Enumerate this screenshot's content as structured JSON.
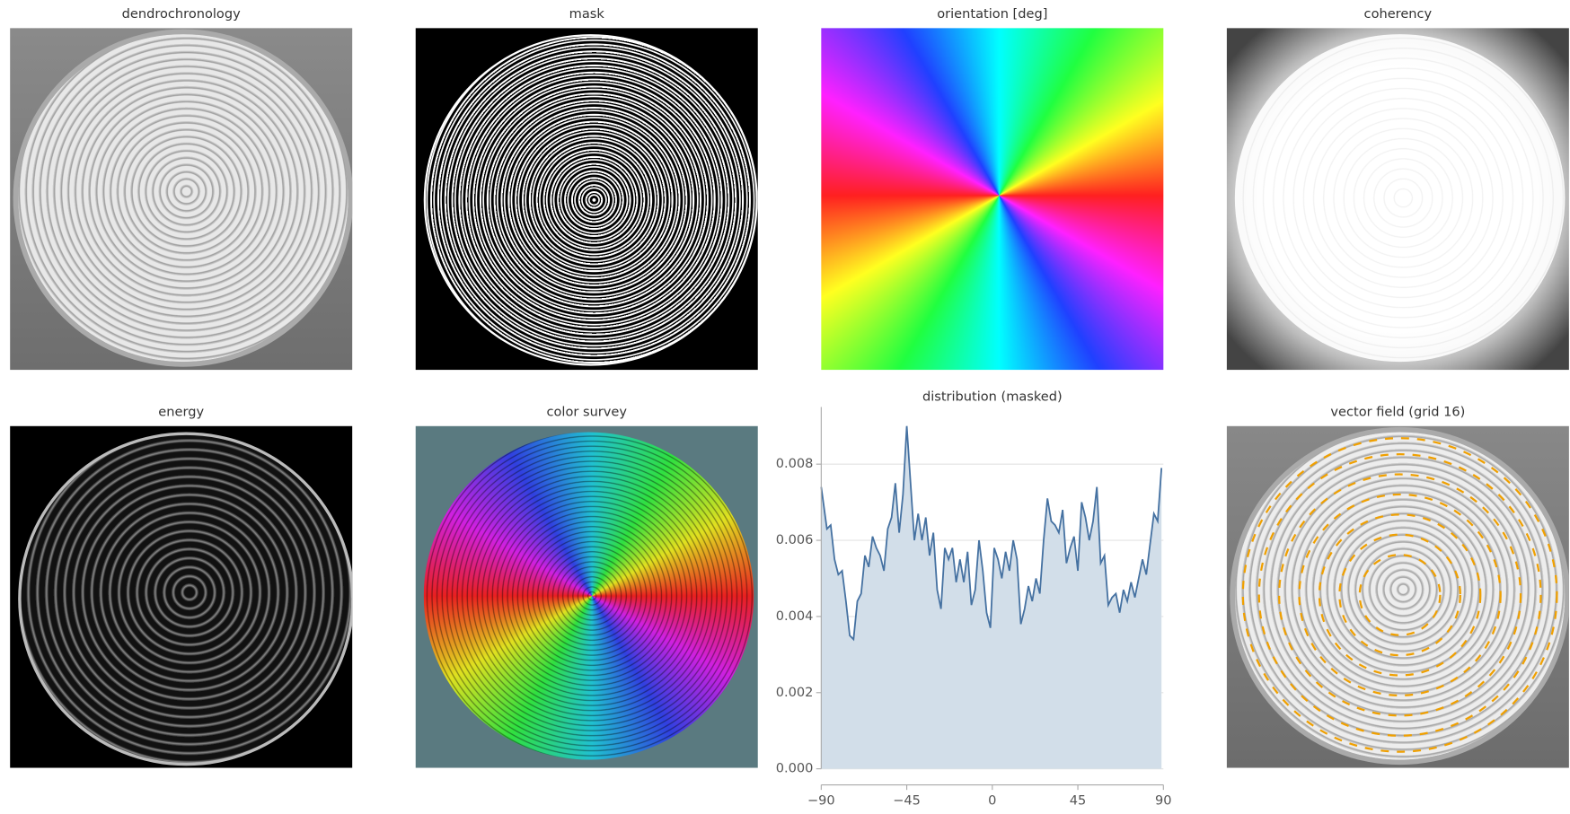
{
  "panels": [
    {
      "title": "dendrochronology"
    },
    {
      "title": "mask"
    },
    {
      "title": "orientation [deg]"
    },
    {
      "title": "coherency"
    },
    {
      "title": "energy"
    },
    {
      "title": "color survey"
    },
    {
      "title": "vector field (grid 16)"
    }
  ],
  "chart_data": {
    "type": "line",
    "title": "distribution (masked)",
    "x": [
      -90,
      -87,
      -85,
      -83,
      -81,
      -79,
      -77,
      -75,
      -73,
      -71,
      -69,
      -67,
      -65,
      -63,
      -61,
      -59,
      -57,
      -55,
      -53,
      -51,
      -49,
      -47,
      -45,
      -43,
      -41,
      -39,
      -37,
      -35,
      -33,
      -31,
      -29,
      -27,
      -25,
      -23,
      -21,
      -19,
      -17,
      -15,
      -13,
      -11,
      -9,
      -7,
      -5,
      -3,
      -1,
      1,
      3,
      5,
      7,
      9,
      11,
      13,
      15,
      17,
      19,
      21,
      23,
      25,
      27,
      29,
      31,
      33,
      35,
      37,
      39,
      41,
      43,
      45,
      47,
      49,
      51,
      53,
      55,
      57,
      59,
      61,
      63,
      65,
      67,
      69,
      71,
      73,
      75,
      77,
      79,
      81,
      83,
      85,
      87,
      89
    ],
    "values": [
      0.0074,
      0.0063,
      0.0064,
      0.0055,
      0.0051,
      0.0052,
      0.0044,
      0.0035,
      0.0034,
      0.0044,
      0.0046,
      0.0056,
      0.0053,
      0.0061,
      0.0058,
      0.0056,
      0.0052,
      0.0063,
      0.0066,
      0.0075,
      0.0062,
      0.0072,
      0.009,
      0.0075,
      0.006,
      0.0067,
      0.006,
      0.0066,
      0.0056,
      0.0062,
      0.0047,
      0.0042,
      0.0058,
      0.0055,
      0.0058,
      0.0049,
      0.0055,
      0.0049,
      0.0057,
      0.0043,
      0.0047,
      0.006,
      0.0052,
      0.0041,
      0.0037,
      0.0058,
      0.0055,
      0.005,
      0.0057,
      0.0052,
      0.006,
      0.0055,
      0.0038,
      0.0042,
      0.0048,
      0.0044,
      0.005,
      0.0046,
      0.006,
      0.0071,
      0.0065,
      0.0064,
      0.0062,
      0.0068,
      0.0054,
      0.0058,
      0.0061,
      0.0052,
      0.007,
      0.0066,
      0.006,
      0.0065,
      0.0074,
      0.0054,
      0.0056,
      0.0043,
      0.0045,
      0.0046,
      0.0041,
      0.0047,
      0.0044,
      0.0049,
      0.0045,
      0.005,
      0.0055,
      0.0051,
      0.0059,
      0.0067,
      0.0065,
      0.0079
    ],
    "color": "#4571a1",
    "fill": "#d2dee9",
    "xlim": [
      -90,
      90
    ],
    "ylim": [
      0,
      0.0095
    ],
    "xticks": [
      {
        "value": -90,
        "label": "−90"
      },
      {
        "value": -45,
        "label": "−45"
      },
      0,
      45,
      90
    ],
    "yticks": [
      {
        "value": 0,
        "label": "0.000"
      },
      {
        "value": 0.002,
        "label": "0.002"
      },
      {
        "value": 0.004,
        "label": "0.004"
      },
      {
        "value": 0.006,
        "label": "0.006"
      },
      {
        "value": 0.008,
        "label": "0.008"
      }
    ],
    "grid": true
  }
}
